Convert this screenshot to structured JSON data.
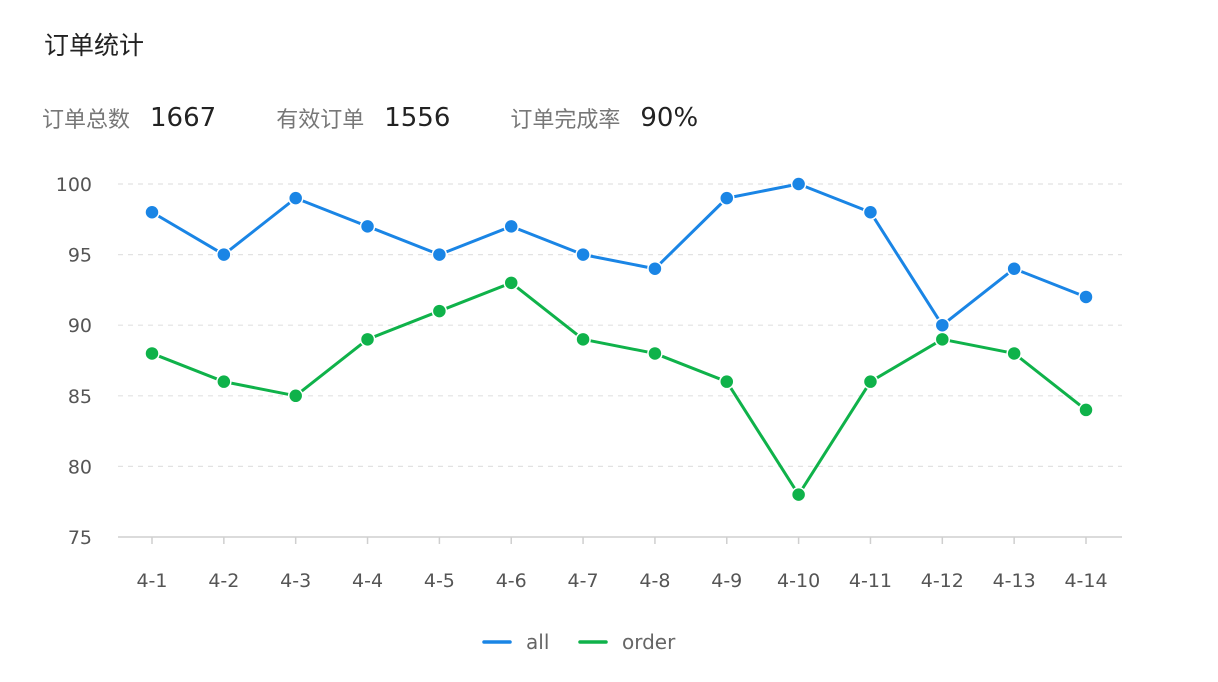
{
  "title": "订单统计",
  "stats": [
    {
      "label": "订单总数",
      "value": "1667"
    },
    {
      "label": "有效订单",
      "value": "1556"
    },
    {
      "label": "订单完成率",
      "value": "90%"
    }
  ],
  "chart_data": {
    "type": "line",
    "title": "",
    "xlabel": "",
    "ylabel": "",
    "ylim": [
      75,
      100
    ],
    "yticks": [
      75,
      80,
      85,
      90,
      95,
      100
    ],
    "grid": true,
    "legend_position": "bottom",
    "categories": [
      "4-1",
      "4-2",
      "4-3",
      "4-4",
      "4-5",
      "4-6",
      "4-7",
      "4-8",
      "4-9",
      "4-10",
      "4-11",
      "4-12",
      "4-13",
      "4-14"
    ],
    "series": [
      {
        "name": "all",
        "color": "#1a85e5",
        "values": [
          98,
          95,
          99,
          97,
          95,
          97,
          95,
          94,
          99,
          100,
          98,
          90,
          94,
          92
        ]
      },
      {
        "name": "order",
        "color": "#0fb24a",
        "values": [
          88,
          86,
          85,
          89,
          91,
          93,
          89,
          88,
          86,
          78,
          86,
          89,
          88,
          84
        ]
      }
    ]
  }
}
